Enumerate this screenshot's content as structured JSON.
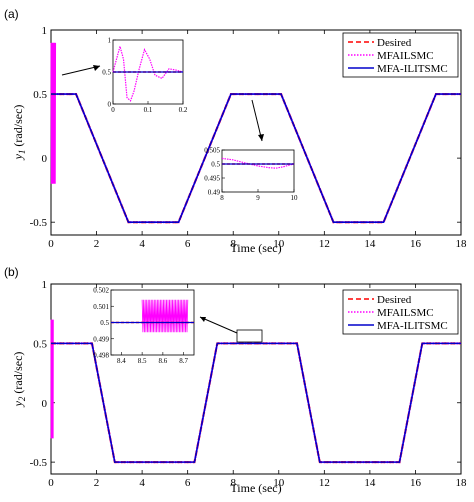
{
  "colors": {
    "desired": "#ff0000",
    "mfailsmc": "#ff00ff",
    "mfa_ilitsmc": "#0000cc",
    "axes": "#000000"
  },
  "chart_data": [
    {
      "panel_label": "(a)",
      "type": "line",
      "xlabel": "Time (sec)",
      "ylabel": "y1 (rad/sec)",
      "ylabel_main": "y",
      "ylabel_sub": "1",
      "ylabel_unit": " (rad/sec)",
      "xlim": [
        0,
        18
      ],
      "ylim": [
        -0.6,
        1
      ],
      "xticks": [
        "0",
        "2",
        "4",
        "6",
        "8",
        "10",
        "12",
        "14",
        "16",
        "18"
      ],
      "yticks": [
        "-0.5",
        "0",
        "0.5",
        "1"
      ],
      "grid": false,
      "legend_position": "top-right",
      "legend": [
        "Desired",
        "MFAILSMC",
        "MFA-ILITSMC"
      ],
      "trajectory": {
        "x": [
          0,
          1.1,
          3.4,
          5.6,
          7.9,
          10.1,
          12.4,
          14.6,
          16.9,
          18
        ],
        "y": [
          0.5,
          0.5,
          -0.5,
          -0.5,
          0.5,
          0.5,
          -0.5,
          -0.5,
          0.5,
          0.5
        ]
      },
      "series": [
        {
          "name": "Desired",
          "style": "dashed"
        },
        {
          "name": "MFAILSMC",
          "style": "dotted",
          "startup_oscillation": {
            "x_end": 0.2,
            "y_range": [
              -0.2,
              0.9
            ]
          }
        },
        {
          "name": "MFA-ILITSMC",
          "style": "solid"
        }
      ],
      "insets": [
        {
          "xlim": [
            0,
            0.2
          ],
          "ylim": [
            0,
            1
          ],
          "xticks": [
            "0",
            "0.1",
            "0.2"
          ],
          "yticks": [
            "0",
            "0.5",
            "1"
          ],
          "mfailsmc": {
            "x": [
              0,
              0.02,
              0.03,
              0.04,
              0.05,
              0.06,
              0.075,
              0.09,
              0.105,
              0.12,
              0.14,
              0.16,
              0.18,
              0.2
            ],
            "y": [
              0.5,
              0.9,
              0.7,
              0.1,
              0.05,
              0.2,
              0.55,
              0.85,
              0.7,
              0.45,
              0.4,
              0.55,
              0.53,
              0.5
            ]
          },
          "mfa_ilitsmc": {
            "x": [
              0,
              0.005,
              0.2
            ],
            "y": [
              0.5,
              0.5,
              0.5
            ]
          }
        },
        {
          "xlim": [
            8,
            10
          ],
          "ylim": [
            0.49,
            0.505
          ],
          "xticks": [
            "8",
            "9",
            "10"
          ],
          "yticks": [
            "0.49",
            "0.495",
            "0.5",
            "0.505"
          ],
          "mfailsmc": {
            "x": [
              8,
              8.3,
              8.6,
              9.0,
              9.3,
              9.5,
              9.7,
              9.9,
              10
            ],
            "y": [
              0.502,
              0.5015,
              0.5005,
              0.4993,
              0.4987,
              0.4985,
              0.499,
              0.4997,
              0.5
            ]
          },
          "mfa_ilitsmc": {
            "x": [
              8,
              10
            ],
            "y": [
              0.5,
              0.5
            ]
          }
        }
      ]
    },
    {
      "panel_label": "(b)",
      "type": "line",
      "xlabel": "Time (sec)",
      "ylabel": "y2 (rad/sec)",
      "ylabel_main": "y",
      "ylabel_sub": "2",
      "ylabel_unit": " (rad/sec)",
      "xlim": [
        0,
        18
      ],
      "ylim": [
        -0.6,
        1
      ],
      "xticks": [
        "0",
        "2",
        "4",
        "6",
        "8",
        "10",
        "12",
        "14",
        "16",
        "18"
      ],
      "yticks": [
        "-0.5",
        "0",
        "0.5",
        "1"
      ],
      "grid": false,
      "legend_position": "top-right",
      "legend": [
        "Desired",
        "MFAILSMC",
        "MFA-ILITSMC"
      ],
      "trajectory": {
        "x": [
          0,
          1.8,
          2.8,
          6.3,
          7.3,
          10.8,
          11.8,
          15.3,
          16.3,
          18
        ],
        "y": [
          0.5,
          0.5,
          -0.5,
          -0.5,
          0.5,
          0.5,
          -0.5,
          -0.5,
          0.5,
          0.5
        ]
      },
      "series": [
        {
          "name": "Desired",
          "style": "dashed"
        },
        {
          "name": "MFAILSMC",
          "style": "dotted",
          "startup_oscillation": {
            "x_end": 0.1,
            "y_range": [
              -0.3,
              0.7
            ]
          }
        },
        {
          "name": "MFA-ILITSMC",
          "style": "solid"
        }
      ],
      "insets": [
        {
          "xlim": [
            8.35,
            8.75
          ],
          "ylim": [
            0.498,
            0.502
          ],
          "xticks": [
            "8.4",
            "8.5",
            "8.6",
            "8.7"
          ],
          "yticks": [
            "0.498",
            "0.499",
            "0.5",
            "0.501",
            "0.502"
          ],
          "noise_band": {
            "x": [
              8.5,
              8.72
            ],
            "y": [
              0.4994,
              0.5014
            ]
          },
          "mfa_ilitsmc": {
            "x": [
              8.35,
              8.75
            ],
            "y": [
              0.5,
              0.5
            ]
          }
        }
      ]
    }
  ]
}
